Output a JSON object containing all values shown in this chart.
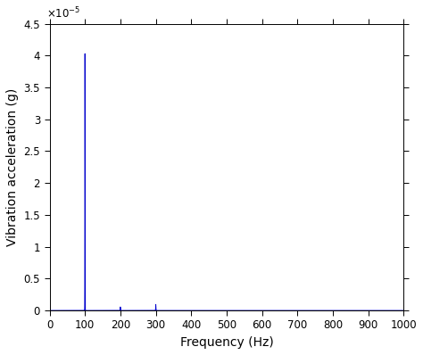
{
  "title": "",
  "xlabel": "Frequency (Hz)",
  "ylabel": "Vibration acceleration (g)",
  "xlim": [
    0,
    1000
  ],
  "ylim": [
    0,
    4.5e-05
  ],
  "yticks": [
    0,
    5e-06,
    1e-05,
    1.5e-05,
    2e-05,
    2.5e-05,
    3e-05,
    3.5e-05,
    4e-05,
    4.5e-05
  ],
  "ytick_labels": [
    "0",
    "0.5",
    "1",
    "1.5",
    "2",
    "2.5",
    "3",
    "3.5",
    "4",
    "4.5"
  ],
  "xticks": [
    0,
    100,
    200,
    300,
    400,
    500,
    600,
    700,
    800,
    900,
    1000
  ],
  "xtick_labels": [
    "0",
    "100",
    "200",
    "300",
    "400",
    "500",
    "600",
    "700",
    "800",
    "900",
    "1000"
  ],
  "line_color": "#0000cc",
  "background_color": "#ffffff",
  "spikes": [
    {
      "freq": 100,
      "amp": 4.03e-05
    },
    {
      "freq": 200,
      "amp": 5.5e-07
    },
    {
      "freq": 300,
      "amp": 9.5e-07
    }
  ],
  "figsize": [
    4.74,
    3.98
  ],
  "dpi": 100,
  "tick_fontsize": 8.5,
  "label_fontsize": 10
}
